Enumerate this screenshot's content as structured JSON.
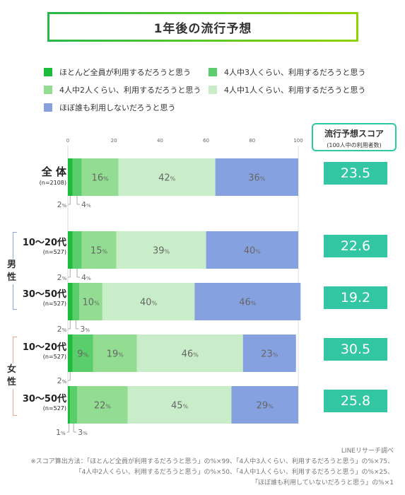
{
  "title": "1年後の流行予想",
  "legend": [
    {
      "label": "ほとんど全員が利用するだろうと思う",
      "color": "#1dbb3b"
    },
    {
      "label": "4人中3人くらい、利用するだろうと思う",
      "color": "#5ace6a"
    },
    {
      "label": "4人中2人くらい、利用するだろうと思う",
      "color": "#92dd92"
    },
    {
      "label": "4人中1人くらい、利用するだろうと思う",
      "color": "#c8edc8"
    },
    {
      "label": "ほぼ誰も利用しないだろうと思う",
      "color": "#86a1e0"
    }
  ],
  "score_header": {
    "title": "流行予想スコア",
    "sub": "(100人中の利用者数)"
  },
  "groups": {
    "male": "男性",
    "female": "女性"
  },
  "footer": [
    "LINEリサーチ調べ",
    "※スコア算出方法：「ほとんど全員が利用するだろうと思う」の%×99、「4人中3人くらい、利用するだろうと思う」の%×75、",
    "「4人中2人くらい、利用するだろうと思う」の%×50、「4人中1人くらい、利用するだろうと思う」の%×25、",
    "「ほぼ誰も利用していないだろうと思う」の%×1"
  ],
  "chart_data": {
    "type": "bar",
    "orientation": "horizontal-stacked-100",
    "xlim": [
      0,
      100
    ],
    "x_ticks": [
      "0",
      "20",
      "40",
      "60",
      "80",
      "100"
    ],
    "series_names": [
      "ほとんど全員が利用するだろうと思う",
      "4人中3人くらい、利用するだろうと思う",
      "4人中2人くらい、利用するだろうと思う",
      "4人中1人くらい、利用するだろうと思う",
      "ほぼ誰も利用しないだろうと思う"
    ],
    "unit": "%",
    "rows": [
      {
        "label": "全 体",
        "n": "(n=2108)",
        "values": [
          2,
          4,
          16,
          42,
          36
        ],
        "score": "23.5"
      },
      {
        "label": "10〜20代",
        "n": "(n=527)",
        "values": [
          2,
          4,
          15,
          39,
          40
        ],
        "score": "22.6"
      },
      {
        "label": "30〜50代",
        "n": "(n=527)",
        "values": [
          2,
          3,
          10,
          40,
          46
        ],
        "score": "19.2"
      },
      {
        "label": "10〜20代",
        "n": "(n=527)",
        "values": [
          2,
          9,
          19,
          46,
          23
        ],
        "score": "30.5"
      },
      {
        "label": "30〜50代",
        "n": "(n=527)",
        "values": [
          1,
          3,
          22,
          45,
          29
        ],
        "score": "25.8"
      }
    ]
  }
}
